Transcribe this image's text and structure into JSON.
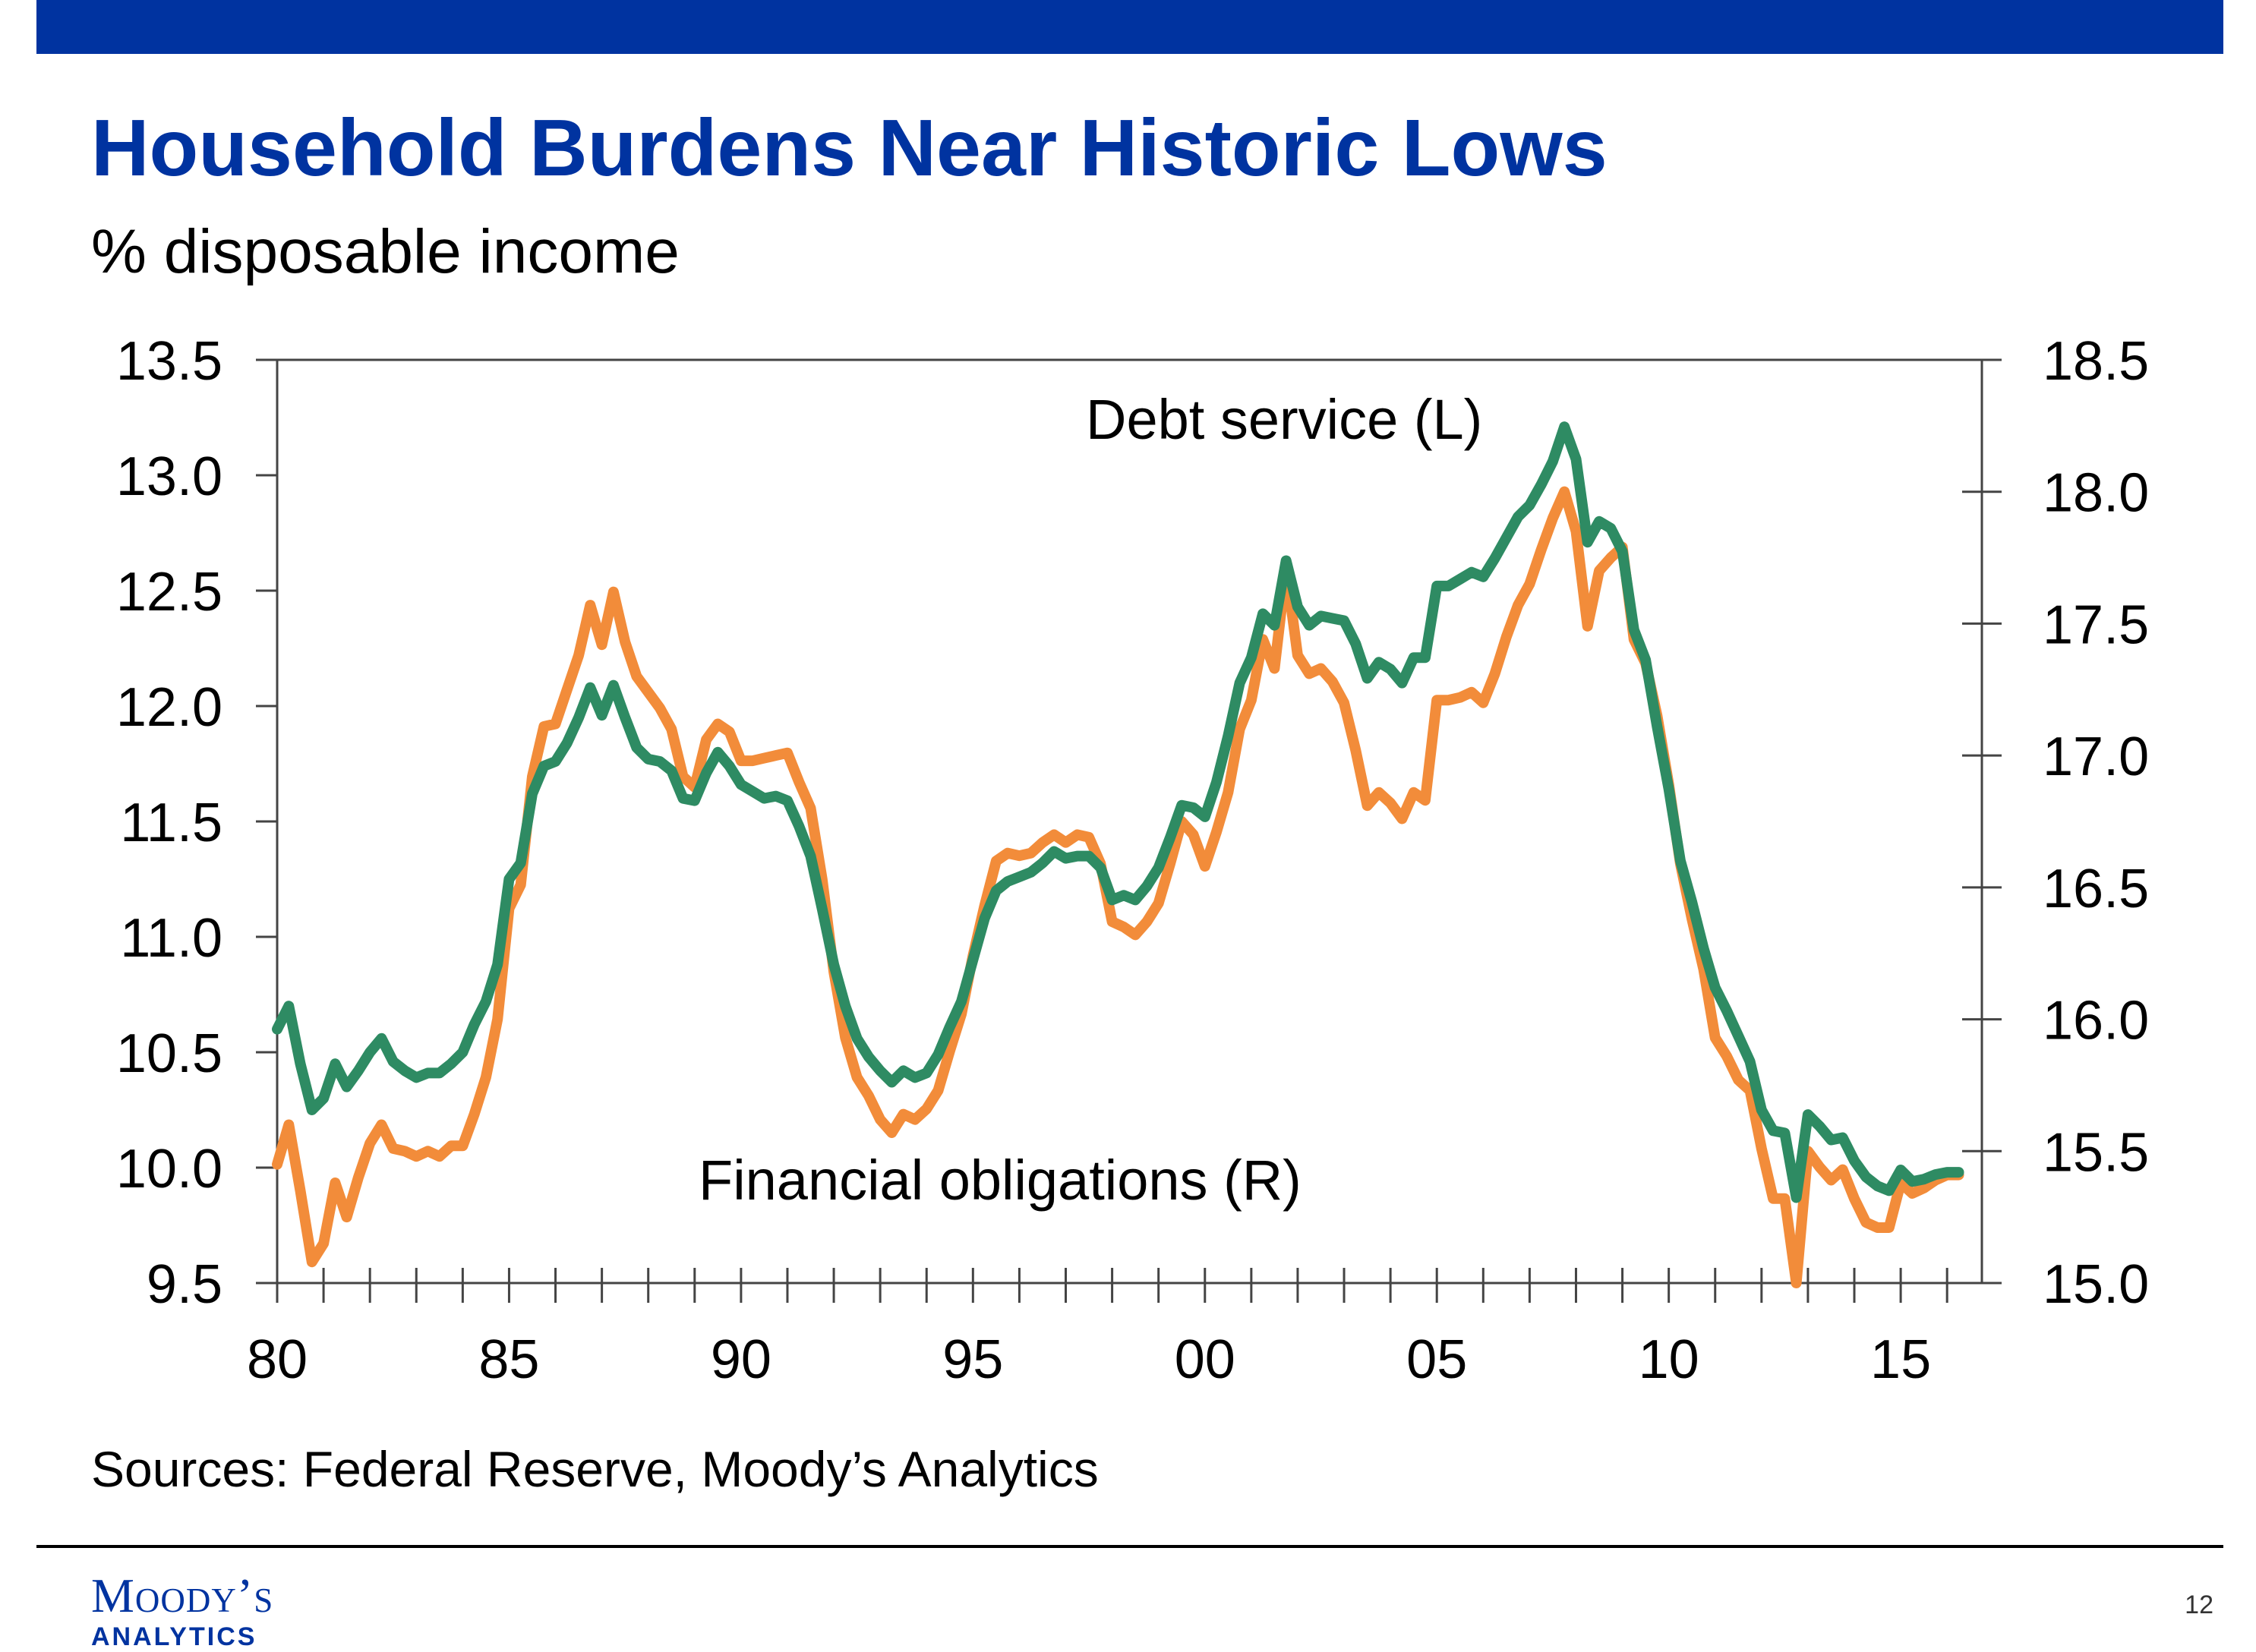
{
  "slide": {
    "title": "Household Burdens Near Historic Lows",
    "subtitle": "% disposable income",
    "source": "Sources: Federal Reserve, Moody’s Analytics",
    "logo_line1": "Moody’s",
    "logo_line2": "ANALYTICS",
    "page_number": "12",
    "colors": {
      "brand": "#0033a0",
      "debt_service": "#2e8b63",
      "financial_obligations": "#f28c3a"
    }
  },
  "chart_data": {
    "type": "line",
    "title": "Household Burdens Near Historic Lows",
    "subtitle": "% disposable income",
    "x_ticklabels": [
      "80",
      "85",
      "90",
      "95",
      "00",
      "05",
      "10",
      "15"
    ],
    "y_left": {
      "lim": [
        9.5,
        13.5
      ],
      "ticklabels": [
        "9.5",
        "10.0",
        "10.5",
        "11.0",
        "11.5",
        "12.0",
        "12.5",
        "13.0",
        "13.5"
      ]
    },
    "y_right": {
      "lim": [
        15.0,
        18.5
      ],
      "ticklabels": [
        "15.0",
        "15.5",
        "16.0",
        "16.5",
        "17.0",
        "17.5",
        "18.0",
        "18.5"
      ]
    },
    "x_start": 1980.0,
    "x_step": 0.25,
    "series": [
      {
        "name": "Debt service (L)",
        "axis": "left",
        "color": "#2e8b63",
        "values": [
          10.6,
          10.7,
          10.45,
          10.25,
          10.3,
          10.45,
          10.35,
          10.42,
          10.5,
          10.56,
          10.46,
          10.42,
          10.39,
          10.41,
          10.41,
          10.45,
          10.5,
          10.62,
          10.72,
          10.88,
          11.25,
          11.32,
          11.62,
          11.74,
          11.76,
          11.84,
          11.95,
          12.08,
          11.96,
          12.09,
          11.95,
          11.82,
          11.77,
          11.76,
          11.72,
          11.6,
          11.59,
          11.71,
          11.8,
          11.74,
          11.66,
          11.63,
          11.6,
          11.61,
          11.59,
          11.48,
          11.35,
          11.12,
          10.88,
          10.7,
          10.56,
          10.48,
          10.42,
          10.37,
          10.42,
          10.39,
          10.41,
          10.49,
          10.61,
          10.72,
          10.9,
          11.08,
          11.2,
          11.24,
          11.26,
          11.28,
          11.32,
          11.37,
          11.34,
          11.35,
          11.35,
          11.3,
          11.16,
          11.18,
          11.16,
          11.22,
          11.3,
          11.43,
          11.57,
          11.56,
          11.52,
          11.67,
          11.87,
          12.1,
          12.21,
          12.4,
          12.35,
          12.63,
          12.43,
          12.35,
          12.39,
          12.38,
          12.37,
          12.27,
          12.12,
          12.19,
          12.16,
          12.1,
          12.21,
          12.21,
          12.52,
          12.52,
          12.55,
          12.58,
          12.56,
          12.64,
          12.73,
          12.82,
          12.87,
          12.96,
          13.06,
          13.21,
          13.07,
          12.71,
          12.8,
          12.77,
          12.67,
          12.33,
          12.2,
          11.91,
          11.64,
          11.33,
          11.15,
          10.95,
          10.78,
          10.68,
          10.57,
          10.46,
          10.25,
          10.16,
          10.15,
          9.87,
          10.23,
          10.18,
          10.12,
          10.13,
          10.03,
          9.96,
          9.92,
          9.9,
          9.99,
          9.94,
          9.95,
          9.97,
          9.98,
          9.98
        ]
      },
      {
        "name": "Financial obligations (R)",
        "axis": "right",
        "color": "#f28c3a",
        "values": [
          15.45,
          15.6,
          15.35,
          15.08,
          15.15,
          15.38,
          15.25,
          15.4,
          15.53,
          15.6,
          15.51,
          15.5,
          15.48,
          15.5,
          15.48,
          15.52,
          15.52,
          15.64,
          15.78,
          16.0,
          16.42,
          16.51,
          16.92,
          17.11,
          17.12,
          17.25,
          17.38,
          17.57,
          17.42,
          17.62,
          17.43,
          17.3,
          17.24,
          17.18,
          17.1,
          16.92,
          16.88,
          17.06,
          17.12,
          17.09,
          16.98,
          16.98,
          16.99,
          17.0,
          17.01,
          16.9,
          16.8,
          16.53,
          16.18,
          15.93,
          15.78,
          15.71,
          15.62,
          15.57,
          15.64,
          15.62,
          15.66,
          15.73,
          15.88,
          16.02,
          16.24,
          16.43,
          16.6,
          16.63,
          16.62,
          16.63,
          16.67,
          16.7,
          16.67,
          16.7,
          16.69,
          16.59,
          16.37,
          16.35,
          16.32,
          16.37,
          16.44,
          16.59,
          16.75,
          16.7,
          16.58,
          16.71,
          16.86,
          17.1,
          17.21,
          17.44,
          17.33,
          17.71,
          17.38,
          17.31,
          17.33,
          17.28,
          17.2,
          17.02,
          16.81,
          16.86,
          16.82,
          16.76,
          16.86,
          16.83,
          17.21,
          17.21,
          17.22,
          17.24,
          17.2,
          17.31,
          17.45,
          17.57,
          17.65,
          17.78,
          17.9,
          18.0,
          17.85,
          17.49,
          17.7,
          17.75,
          17.79,
          17.44,
          17.35,
          17.15,
          16.89,
          16.59,
          16.38,
          16.19,
          15.93,
          15.86,
          15.77,
          15.73,
          15.51,
          15.32,
          15.32,
          15.0,
          15.5,
          15.44,
          15.39,
          15.43,
          15.32,
          15.23,
          15.21,
          15.21,
          15.38,
          15.34,
          15.36,
          15.39,
          15.41,
          15.41
        ]
      }
    ],
    "annotations": [
      "Debt service (L)",
      "Financial obligations (R)"
    ],
    "grid": false,
    "legend": "none"
  }
}
